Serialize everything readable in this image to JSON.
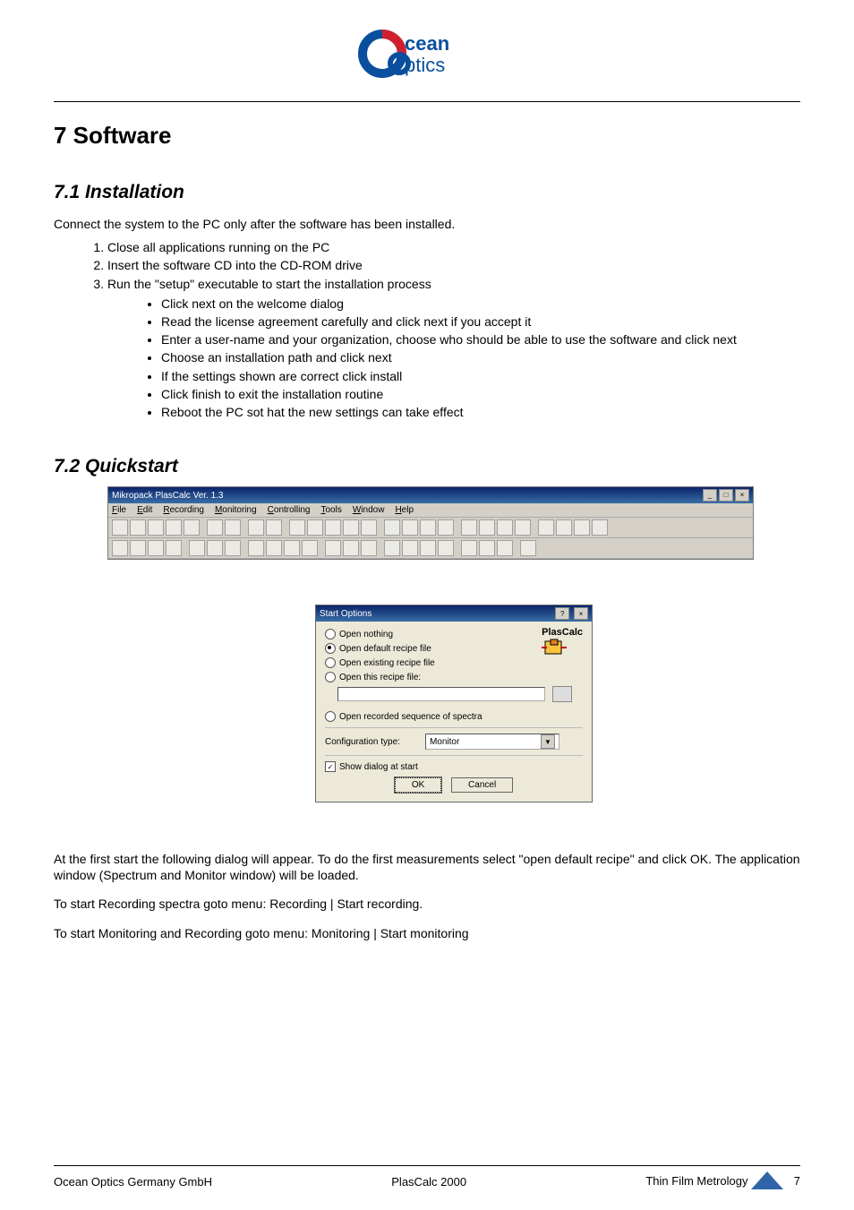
{
  "logo": {
    "primary": "#0a4f9e",
    "text1": "cean",
    "text2": "ptics"
  },
  "h1": "7  Software",
  "section1": {
    "h2": "7.1   Installation",
    "intro": "Connect the system to the PC only after the software has been installed.",
    "steps": [
      "Close all applications running on the PC",
      "Insert the software CD into the CD-ROM drive",
      "Run the \"setup\" executable to start the installation process"
    ],
    "bullets": [
      "Click next on the welcome dialog",
      "Read the license agreement carefully and click next if you accept it",
      "Enter a user-name and your organization, choose who should be able to use the software and click next",
      "Choose an installation path and click next",
      "If the settings shown are correct click install",
      "Click finish to exit the installation routine",
      "Reboot the PC sot hat the new settings can take effect"
    ]
  },
  "section2": {
    "h2": "7.2   Quickstart",
    "appWindow": {
      "title": "Mikropack PlasCalc Ver. 1.3",
      "menus": [
        "File",
        "Edit",
        "Recording",
        "Monitoring",
        "Controlling",
        "Tools",
        "Window",
        "Help"
      ],
      "toolbarCount1": 26,
      "toolbarCount2": 22
    },
    "dialog": {
      "title": "Start Options",
      "options": {
        "opt1": "Open nothing",
        "opt2": "Open default recipe file",
        "opt3": "Open existing recipe file",
        "opt4": "Open this recipe file:",
        "opt5": "Open recorded sequence of spectra"
      },
      "configLabel": "Configuration type:",
      "configValue": "Monitor",
      "checkboxLabel": "Show dialog at start",
      "okLabel": "OK",
      "cancelLabel": "Cancel",
      "logoText": "PlasCalc"
    },
    "para1": "At the first start the following dialog will appear. To do the first measurements select \"open default recipe\" and click OK. The application window (Spectrum and Monitor window) will be loaded.",
    "para2": "To start Recording spectra goto menu: Recording | Start recording.",
    "para3": "To start Monitoring and Recording goto menu: Monitoring | Start monitoring"
  },
  "footer": {
    "left": "Ocean Optics Germany GmbH",
    "center": "PlasCalc 2000",
    "right": "Thin Film Metrology",
    "page": "7"
  }
}
